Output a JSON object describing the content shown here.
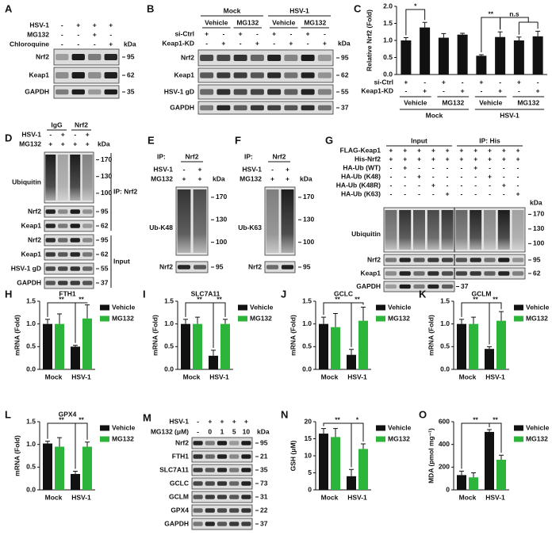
{
  "blots": [
    {
      "panel": "A",
      "conditions": [
        {
          "label": "HSV-1",
          "signs": [
            "-",
            "+",
            "+",
            "+"
          ]
        },
        {
          "label": "MG132",
          "signs": [
            "-",
            "-",
            "+",
            "-"
          ]
        },
        {
          "label": "Chloroquine",
          "signs": [
            "-",
            "-",
            "-",
            "+"
          ]
        }
      ],
      "kda_unit": "kDa",
      "bands": [
        {
          "label": "Nrf2",
          "kda": [
            95
          ]
        },
        {
          "label": "Keap1",
          "kda": [
            62
          ]
        },
        {
          "label": "GAPDH",
          "kda": [
            35
          ]
        }
      ]
    },
    {
      "panel": "B",
      "groups": [
        {
          "label": "Mock",
          "subgroups": [
            "Vehicle",
            "MG132"
          ]
        },
        {
          "label": "HSV-1",
          "subgroups": [
            "Vehicle",
            "MG132"
          ]
        }
      ],
      "conditions": [
        {
          "label": "si-Ctrl",
          "signs": [
            "+",
            "-",
            "+",
            "-",
            "+",
            "-",
            "+",
            "-"
          ]
        },
        {
          "label": "Keap1-KD",
          "signs": [
            "-",
            "+",
            "-",
            "+",
            "-",
            "+",
            "-",
            "+"
          ]
        }
      ],
      "kda_unit": "kDa",
      "bands": [
        {
          "label": "Nrf2",
          "kda": [
            95
          ]
        },
        {
          "label": "Keap1",
          "kda": [
            62
          ]
        },
        {
          "label": "HSV-1 gD",
          "kda": [
            55
          ]
        },
        {
          "label": "GAPDH",
          "kda": [
            37
          ]
        }
      ]
    },
    {
      "panel": "D",
      "groups": [
        {
          "label": "IgG"
        },
        {
          "label": "Nrf2"
        }
      ],
      "conditions": [
        {
          "label": "HSV-1",
          "signs": [
            "-",
            "+",
            "-",
            "+"
          ]
        },
        {
          "label": "MG132",
          "signs": [
            "+",
            "+",
            "+",
            "+"
          ]
        }
      ],
      "kda_unit": "kDa",
      "bands": [
        {
          "label": "Ubiquitin",
          "kda": [
            170,
            130,
            100
          ]
        },
        {
          "label": "Nrf2",
          "kda": [
            95
          ]
        },
        {
          "label": "Keap1",
          "kda": [
            62
          ]
        },
        {
          "label": "Nrf2",
          "kda": [
            95
          ]
        },
        {
          "label": "Keap1",
          "kda": [
            62
          ]
        },
        {
          "label": "HSV-1 gD",
          "kda": [
            55
          ]
        },
        {
          "label": "GAPDH",
          "kda": [
            37
          ]
        }
      ],
      "brackets": [
        "IP: Nrf2",
        "Input"
      ]
    },
    {
      "panel": "E",
      "ip": "IP:",
      "ip_target": "Nrf2",
      "conditions": [
        {
          "label": "HSV-1",
          "signs": [
            "-",
            "+"
          ]
        },
        {
          "label": "MG132",
          "signs": [
            "+",
            "+"
          ]
        }
      ],
      "kda_unit": "kDa",
      "bands": [
        {
          "label": "Ub-K48",
          "kda": [
            170,
            130,
            100
          ]
        },
        {
          "label": "Nrf2",
          "kda": [
            95
          ]
        }
      ]
    },
    {
      "panel": "F",
      "ip": "IP:",
      "ip_target": "Nrf2",
      "conditions": [
        {
          "label": "HSV-1",
          "signs": [
            "-",
            "+"
          ]
        },
        {
          "label": "MG132",
          "signs": [
            "+",
            "+"
          ]
        }
      ],
      "kda_unit": "kDa",
      "bands": [
        {
          "label": "Ub-K63",
          "kda": [
            170,
            130,
            100
          ]
        },
        {
          "label": "Nrf2",
          "kda": [
            95
          ]
        }
      ]
    },
    {
      "panel": "G",
      "groups": [
        {
          "label": "Input"
        },
        {
          "label": "IP: His"
        }
      ],
      "conditions": [
        {
          "label": "FLAG-Keap1",
          "signs": [
            "+",
            "+",
            "+",
            "+",
            "+",
            "+",
            "+",
            "+",
            "+",
            "+"
          ]
        },
        {
          "label": "His-Nrf2",
          "signs": [
            "+",
            "+",
            "+",
            "+",
            "+",
            "+",
            "+",
            "+",
            "+",
            "+"
          ]
        },
        {
          "label": "HA-Ub (WT)",
          "signs": [
            "-",
            "+",
            "-",
            "-",
            "-",
            "-",
            "+",
            "-",
            "-",
            "-"
          ]
        },
        {
          "label": "HA-Ub (K48)",
          "signs": [
            "-",
            "-",
            "+",
            "-",
            "-",
            "-",
            "-",
            "+",
            "-",
            "-"
          ]
        },
        {
          "label": "HA-Ub (K48R)",
          "signs": [
            "-",
            "-",
            "-",
            "+",
            "-",
            "-",
            "-",
            "-",
            "+",
            "-"
          ]
        },
        {
          "label": "HA-Ub (K63)",
          "signs": [
            "-",
            "-",
            "-",
            "-",
            "+",
            "-",
            "-",
            "-",
            "-",
            "+"
          ]
        }
      ],
      "kda_unit": "kDa",
      "bands": [
        {
          "label": "Ubiquitin",
          "kda": [
            170,
            130,
            100
          ]
        },
        {
          "label": "Nrf2",
          "kda": [
            95
          ]
        },
        {
          "label": "Keap1",
          "kda": [
            62
          ]
        },
        {
          "label": "GAPDH",
          "kda": [
            37
          ]
        }
      ]
    },
    {
      "panel": "M",
      "conditions": [
        {
          "label": "HSV-1",
          "signs": [
            "-",
            "+",
            "+",
            "+",
            "+"
          ]
        },
        {
          "label": "MG132 (μM)",
          "signs": [
            "-",
            "0",
            "1",
            "5",
            "10"
          ]
        }
      ],
      "kda_unit": "kDa",
      "bands": [
        {
          "label": "Nrf2",
          "kda": [
            95
          ]
        },
        {
          "label": "FTH1",
          "kda": [
            21
          ]
        },
        {
          "label": "SLC7A11",
          "kda": [
            35
          ]
        },
        {
          "label": "GCLC",
          "kda": [
            73
          ]
        },
        {
          "label": "GCLM",
          "kda": [
            31
          ]
        },
        {
          "label": "GPX4",
          "kda": [
            22
          ]
        },
        {
          "label": "GAPDH",
          "kda": [
            37
          ]
        }
      ]
    }
  ],
  "chart_data": [
    {
      "panel": "C",
      "type": "bar",
      "ylabel": "Relative Nrf2 (Fold)",
      "color": "#111111",
      "values": [
        1.0,
        1.38,
        1.08,
        1.17,
        0.55,
        1.1,
        1.0,
        1.12
      ],
      "errors": [
        0.08,
        0.15,
        0.12,
        0.04,
        0.03,
        0.15,
        0.1,
        0.15
      ],
      "conditions": [
        {
          "label": "si-Ctrl",
          "signs": [
            "+",
            "-",
            "+",
            "-",
            "+",
            "-",
            "+",
            "-"
          ]
        },
        {
          "label": "Keap1-KD",
          "signs": [
            "-",
            "+",
            "-",
            "+",
            "-",
            "+",
            "-",
            "+"
          ]
        }
      ],
      "subgroups": [
        "Vehicle",
        "MG132",
        "Vehicle",
        "MG132"
      ],
      "groups": [
        "Mock",
        "HSV-1"
      ],
      "ylim": [
        0,
        2
      ],
      "yticks": [
        {
          "value": 0,
          "label": "0.0"
        },
        0.5,
        {
          "value": 1,
          "label": "1.0"
        },
        1.5,
        {
          "value": 2,
          "label": "2.0"
        }
      ],
      "annotations": [
        "*",
        "**",
        "n.s"
      ]
    },
    {
      "panel": "H",
      "type": "grouped-bar",
      "title": "FTH1",
      "ylabel": "mRNA (Fold)",
      "categories": [
        "Mock",
        "HSV-1"
      ],
      "series": [
        {
          "name": "Vehicle",
          "color": "#111111",
          "values": [
            1.0,
            0.5
          ],
          "errors": [
            0.1,
            0.03
          ]
        },
        {
          "name": "MG132",
          "color": "#2db43a",
          "values": [
            1.0,
            1.12
          ],
          "errors": [
            0.22,
            0.3
          ]
        }
      ],
      "ylim": [
        0,
        1.5
      ],
      "yticks": [
        {
          "value": 0,
          "label": "0.0"
        },
        0.5,
        {
          "value": 1,
          "label": "1.0"
        },
        1.5
      ],
      "annotations": [
        "**",
        "**"
      ]
    },
    {
      "panel": "I",
      "type": "grouped-bar",
      "title": "SLC7A11",
      "ylabel": "mRNA (Fold)",
      "categories": [
        "Mock",
        "HSV-1"
      ],
      "series": [
        {
          "name": "Vehicle",
          "color": "#111111",
          "values": [
            1.0,
            0.3
          ],
          "errors": [
            0.1,
            0.12
          ]
        },
        {
          "name": "MG132",
          "color": "#2db43a",
          "values": [
            1.0,
            1.0
          ],
          "errors": [
            0.15,
            0.1
          ]
        }
      ],
      "ylim": [
        0,
        1.5
      ],
      "yticks": [
        {
          "value": 0,
          "label": "0.0"
        },
        0.5,
        {
          "value": 1,
          "label": "1.0"
        },
        1.5
      ],
      "annotations": [
        "**",
        "**"
      ]
    },
    {
      "panel": "J",
      "type": "grouped-bar",
      "title": "GCLC",
      "ylabel": "mRNA (Fold)",
      "categories": [
        "Mock",
        "HSV-1"
      ],
      "series": [
        {
          "name": "Vehicle",
          "color": "#111111",
          "values": [
            1.0,
            0.32
          ],
          "errors": [
            0.15,
            0.12
          ]
        },
        {
          "name": "MG132",
          "color": "#2db43a",
          "values": [
            0.93,
            1.07
          ],
          "errors": [
            0.3,
            0.3
          ]
        }
      ],
      "ylim": [
        0,
        1.5
      ],
      "yticks": [
        {
          "value": 0,
          "label": "0.0"
        },
        0.5,
        {
          "value": 1,
          "label": "1.0"
        },
        1.5
      ],
      "annotations": [
        "**",
        "**"
      ]
    },
    {
      "panel": "K",
      "type": "grouped-bar",
      "title": "GCLM",
      "ylabel": "mRNA (Fold)",
      "categories": [
        "Mock",
        "HSV-1"
      ],
      "series": [
        {
          "name": "Vehicle",
          "color": "#111111",
          "values": [
            1.0,
            0.45
          ],
          "errors": [
            0.1,
            0.05
          ]
        },
        {
          "name": "MG132",
          "color": "#2db43a",
          "values": [
            1.0,
            1.07
          ],
          "errors": [
            0.15,
            0.2
          ]
        }
      ],
      "ylim": [
        0,
        1.5
      ],
      "yticks": [
        {
          "value": 0,
          "label": "0.0"
        },
        0.5,
        {
          "value": 1,
          "label": "1.0"
        },
        1.5
      ],
      "annotations": [
        "**",
        "**"
      ]
    },
    {
      "panel": "L",
      "type": "grouped-bar",
      "title": "GPX4",
      "ylabel": "mRNA (Fold)",
      "categories": [
        "Mock",
        "HSV-1"
      ],
      "series": [
        {
          "name": "Vehicle",
          "color": "#111111",
          "values": [
            1.02,
            0.35
          ],
          "errors": [
            0.05,
            0.06
          ]
        },
        {
          "name": "MG132",
          "color": "#2db43a",
          "values": [
            0.95,
            0.95
          ],
          "errors": [
            0.2,
            0.1
          ]
        }
      ],
      "ylim": [
        0,
        1.5
      ],
      "yticks": [
        {
          "value": 0,
          "label": "0.0"
        },
        0.5,
        {
          "value": 1,
          "label": "1.0"
        },
        1.5
      ],
      "annotations": [
        "**",
        "**"
      ]
    },
    {
      "panel": "N",
      "type": "grouped-bar",
      "ylabel": "GSH (μM)",
      "categories": [
        "Mock",
        "HSV-1"
      ],
      "series": [
        {
          "name": "Vehicle",
          "color": "#111111",
          "values": [
            16.5,
            4
          ],
          "errors": [
            1.5,
            2
          ]
        },
        {
          "name": "MG132",
          "color": "#2db43a",
          "values": [
            15.5,
            12
          ],
          "errors": [
            2.5,
            1.5
          ]
        }
      ],
      "ylim": [
        0,
        20
      ],
      "yticks": [
        0,
        5,
        10,
        15,
        20
      ],
      "annotations": [
        "**",
        "*"
      ]
    },
    {
      "panel": "O",
      "type": "grouped-bar",
      "ylabel": "MDA (pmol mg⁻¹)",
      "categories": [
        "Mock",
        "HSV-1"
      ],
      "series": [
        {
          "name": "Vehicle",
          "color": "#111111",
          "values": [
            130,
            510
          ],
          "errors": [
            35,
            20
          ]
        },
        {
          "name": "MG132",
          "color": "#2db43a",
          "values": [
            110,
            265
          ],
          "errors": [
            40,
            40
          ]
        }
      ],
      "ylim": [
        0,
        600
      ],
      "yticks": [
        0,
        200,
        400,
        600
      ],
      "annotations": [
        "**",
        "**"
      ]
    }
  ]
}
